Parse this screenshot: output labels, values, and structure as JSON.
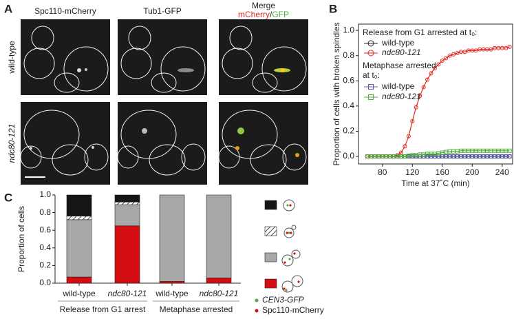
{
  "panels": [
    "A",
    "B",
    "C"
  ],
  "micrographs": {
    "columns": [
      "Spc110-mCherry",
      "Tub1-GFP"
    ],
    "merge": "Merge",
    "merge_red": "mCherry",
    "merge_slash": "/",
    "merge_green": "GFP",
    "rows": [
      "wild-type",
      "ndc80-121"
    ]
  },
  "chart_data": [
    {
      "type": "line",
      "xlabel": "Time at 37˚C (min)",
      "ylabel": "Proportion of cells with broken spindles",
      "legend_headings": [
        "Release from G1 arrested at t₀:",
        "Metaphase arrested",
        "at t₀:"
      ],
      "x": [
        60,
        65,
        70,
        75,
        80,
        85,
        90,
        95,
        100,
        105,
        110,
        115,
        120,
        125,
        130,
        135,
        140,
        145,
        150,
        155,
        160,
        165,
        170,
        175,
        180,
        185,
        190,
        195,
        200,
        205,
        210,
        215,
        220,
        225,
        230,
        235,
        240,
        245,
        250
      ],
      "series": [
        {
          "name": "wild-type",
          "color": "#222222",
          "marker": "circle",
          "values": [
            0,
            0,
            0,
            0,
            0,
            0,
            0,
            0,
            0,
            0,
            0,
            0,
            0,
            0,
            0,
            0,
            0,
            0,
            0,
            0,
            0,
            0,
            0,
            0,
            0,
            0,
            0,
            0,
            0,
            0,
            0,
            0,
            0,
            0,
            0,
            0,
            0,
            0,
            0
          ]
        },
        {
          "name": "ndc80-121",
          "color": "#e0261c",
          "marker": "circle",
          "values": [
            0,
            0,
            0,
            0,
            0,
            0,
            0,
            0,
            0.01,
            0.03,
            0.08,
            0.16,
            0.28,
            0.39,
            0.48,
            0.55,
            0.61,
            0.66,
            0.7,
            0.73,
            0.76,
            0.78,
            0.8,
            0.81,
            0.82,
            0.83,
            0.83,
            0.84,
            0.84,
            0.84,
            0.85,
            0.85,
            0.85,
            0.85,
            0.86,
            0.86,
            0.86,
            0.86,
            0.87
          ]
        },
        {
          "name": "wild-type",
          "color": "#5a5aa8",
          "marker": "square",
          "values": [
            0,
            0,
            0,
            0,
            0,
            0,
            0,
            0,
            0,
            0,
            0,
            0,
            0,
            0,
            0,
            0,
            0,
            0,
            0,
            0,
            0,
            0,
            0,
            0,
            0,
            0,
            0,
            0,
            0,
            0,
            0,
            0,
            0,
            0,
            0,
            0,
            0,
            0,
            0
          ]
        },
        {
          "name": "ndc80-121",
          "color": "#4caf3a",
          "marker": "square",
          "values": [
            0,
            0,
            0,
            0,
            0,
            0,
            0,
            0,
            0,
            0,
            0,
            0.005,
            0.01,
            0.01,
            0.015,
            0.015,
            0.02,
            0.02,
            0.02,
            0.025,
            0.03,
            0.035,
            0.04,
            0.04,
            0.04,
            0.045,
            0.045,
            0.045,
            0.045,
            0.045,
            0.045,
            0.045,
            0.045,
            0.045,
            0.045,
            0.045,
            0.045,
            0.045,
            0.045
          ]
        }
      ],
      "xlim": [
        48,
        254
      ],
      "xticks": [
        80,
        120,
        160,
        200,
        240
      ],
      "ylim": [
        -0.06,
        1.05
      ],
      "yticks": [
        {
          "value": 0,
          "label": "0.0"
        },
        0.2,
        0.4,
        0.6,
        0.8,
        {
          "value": 1,
          "label": "1.0"
        }
      ]
    },
    {
      "type": "stacked_bar",
      "ylabel": "Proportion of cells",
      "categories": [
        "wild-type",
        "ndc80-121",
        "wild-type",
        "ndc80-121"
      ],
      "groups": [
        "Release from G1 arrest",
        "Metaphase arrested"
      ],
      "series": [
        {
          "color": "#d40d12",
          "values": [
            0.07,
            0.65,
            0.02,
            0.06
          ]
        },
        {
          "color": "#a8a8a8",
          "values": [
            0.65,
            0.24,
            0.98,
            0.94
          ]
        },
        {
          "color": "#ffffff",
          "hatch": true,
          "values": [
            0.04,
            0.03,
            0,
            0
          ]
        },
        {
          "color": "#151515",
          "values": [
            0.24,
            0.08,
            0,
            0
          ]
        }
      ],
      "ylim": [
        0,
        1
      ],
      "yticks": [
        {
          "value": 0,
          "label": "0.0"
        },
        0.2,
        0.4,
        0.6,
        0.8,
        {
          "value": 1,
          "label": "1.0"
        }
      ],
      "marker_legend": [
        {
          "label": "CEN3-GFP",
          "color": "#4caf3a"
        },
        {
          "label": "Spc110-mCherry",
          "color": "#d40d12"
        }
      ]
    }
  ]
}
